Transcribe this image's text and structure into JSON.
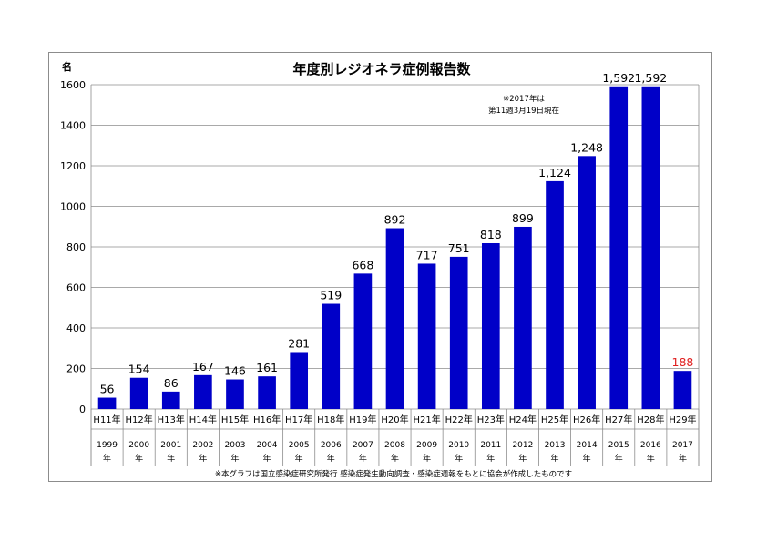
{
  "chart_data": {
    "type": "bar",
    "title": "年度別レジオネラ症例報告数",
    "ylabel": "名",
    "ylim": [
      0,
      1600
    ],
    "yticks": [
      "0",
      "200",
      "400",
      "600",
      "800",
      "1000",
      "1200",
      "1400",
      "1600"
    ],
    "grid": true,
    "categories": [
      "H11年",
      "H12年",
      "H13年",
      "H14年",
      "H15年",
      "H16年",
      "H17年",
      "H18年",
      "H19年",
      "H20年",
      "H21年",
      "H22年",
      "H23年",
      "H24年",
      "H25年",
      "H26年",
      "H27年",
      "H28年",
      "H29年"
    ],
    "years": [
      "1999",
      "2000",
      "2001",
      "2002",
      "2003",
      "2004",
      "2005",
      "2006",
      "2007",
      "2008",
      "2009",
      "2010",
      "2011",
      "2012",
      "2013",
      "2014",
      "2015",
      "2016",
      "2017"
    ],
    "year_suffix": "年",
    "values": [
      56,
      154,
      86,
      167,
      146,
      161,
      281,
      519,
      668,
      892,
      717,
      751,
      818,
      899,
      1124,
      1248,
      1592,
      1592,
      188
    ],
    "value_labels": [
      "56",
      "154",
      "86",
      "167",
      "146",
      "161",
      "281",
      "519",
      "668",
      "892",
      "717",
      "751",
      "818",
      "899",
      "1,124",
      "1,248",
      "1,592",
      "1,592",
      "188"
    ],
    "highlight_index": 18,
    "annotation": [
      "※2017年は",
      "第11週3月19日現在"
    ],
    "source_note": "※本グラフは国立感染症研究所発行 感染症発生動向調査・感染症週報をもとに協会が作成したものです"
  },
  "colors": {
    "bar": "#0000c8",
    "highlight_label": "#e02020",
    "grid": "#8c8c8c",
    "frame": "#8c8c8c"
  }
}
